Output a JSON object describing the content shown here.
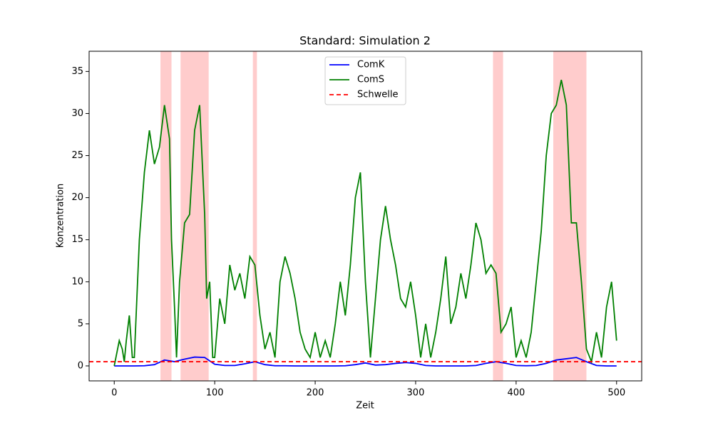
{
  "chart_data": {
    "type": "line",
    "title": "Standard: Simulation 2",
    "x_label": "Zeit",
    "y_label": "Konzentration",
    "xlim": [
      -25,
      525
    ],
    "ylim": [
      -1.78,
      37.4
    ],
    "xticks": [
      0,
      100,
      200,
      300,
      400,
      500
    ],
    "yticks": [
      0,
      5,
      10,
      15,
      20,
      25,
      30,
      35
    ],
    "legend": "upper center",
    "spans": {
      "color": "#ff9999",
      "ranges": [
        [
          46,
          57
        ],
        [
          66,
          94
        ],
        [
          138,
          142
        ],
        [
          377,
          387
        ],
        [
          437,
          470
        ]
      ]
    },
    "series": [
      {
        "name": "ComK",
        "color": "#0000ff",
        "x": [
          0,
          10,
          20,
          30,
          40,
          50,
          60,
          70,
          80,
          90,
          100,
          110,
          120,
          130,
          140,
          150,
          160,
          170,
          180,
          190,
          200,
          210,
          220,
          230,
          240,
          250,
          260,
          270,
          280,
          290,
          300,
          310,
          320,
          330,
          340,
          350,
          360,
          370,
          380,
          390,
          400,
          410,
          420,
          430,
          440,
          450,
          460,
          470,
          480,
          490,
          500
        ],
        "values": [
          0,
          0,
          0,
          0.02,
          0.15,
          0.7,
          0.5,
          0.8,
          1.05,
          1.0,
          0.2,
          0.05,
          0.05,
          0.25,
          0.5,
          0.15,
          0.02,
          0.02,
          0,
          0,
          0,
          0,
          0,
          0.02,
          0.15,
          0.35,
          0.1,
          0.15,
          0.3,
          0.4,
          0.3,
          0.05,
          0,
          0,
          0,
          0,
          0.05,
          0.3,
          0.5,
          0.3,
          0.05,
          0.02,
          0.05,
          0.3,
          0.7,
          0.85,
          1.0,
          0.5,
          0.05,
          0,
          0
        ]
      },
      {
        "name": "ComS",
        "color": "#008000",
        "x": [
          0,
          5,
          8,
          10,
          12,
          15,
          18,
          20,
          25,
          30,
          35,
          40,
          45,
          50,
          55,
          57,
          60,
          62,
          65,
          70,
          75,
          80,
          85,
          90,
          92,
          95,
          98,
          100,
          105,
          110,
          115,
          120,
          125,
          130,
          135,
          140,
          145,
          150,
          155,
          160,
          165,
          170,
          175,
          180,
          185,
          190,
          195,
          200,
          205,
          210,
          215,
          220,
          225,
          230,
          235,
          240,
          245,
          250,
          255,
          260,
          265,
          270,
          275,
          280,
          285,
          290,
          295,
          300,
          305,
          310,
          315,
          320,
          325,
          330,
          335,
          340,
          345,
          350,
          355,
          360,
          365,
          370,
          375,
          380,
          385,
          390,
          395,
          400,
          405,
          410,
          415,
          420,
          425,
          430,
          435,
          440,
          445,
          450,
          455,
          460,
          465,
          470,
          475,
          480,
          485,
          490,
          495,
          500
        ],
        "values": [
          0,
          3,
          2,
          0.5,
          3,
          6,
          1,
          1,
          15,
          23,
          28,
          24,
          26,
          31,
          27,
          15,
          7,
          1,
          10,
          17,
          18,
          28,
          31,
          18,
          8,
          10,
          1,
          1,
          8,
          5,
          12,
          9,
          11,
          8,
          13,
          12,
          6,
          2,
          4,
          1,
          10,
          13,
          11,
          8,
          4,
          2,
          1,
          4,
          1,
          3,
          1,
          5,
          10,
          6,
          12,
          20,
          23,
          10,
          1,
          8,
          15,
          19,
          15,
          12,
          8,
          7,
          10,
          6,
          1,
          5,
          1,
          4,
          8,
          13,
          5,
          7,
          11,
          8,
          12,
          17,
          15,
          11,
          12,
          11,
          4,
          5,
          7,
          1,
          3,
          1,
          4,
          10,
          16,
          25,
          30,
          31,
          34,
          31,
          17,
          17,
          10,
          2,
          0.5,
          4,
          1,
          7,
          10,
          3
        ]
      }
    ],
    "threshold": {
      "name": "Schwelle",
      "value": 0.5,
      "color": "#ff0000"
    }
  }
}
